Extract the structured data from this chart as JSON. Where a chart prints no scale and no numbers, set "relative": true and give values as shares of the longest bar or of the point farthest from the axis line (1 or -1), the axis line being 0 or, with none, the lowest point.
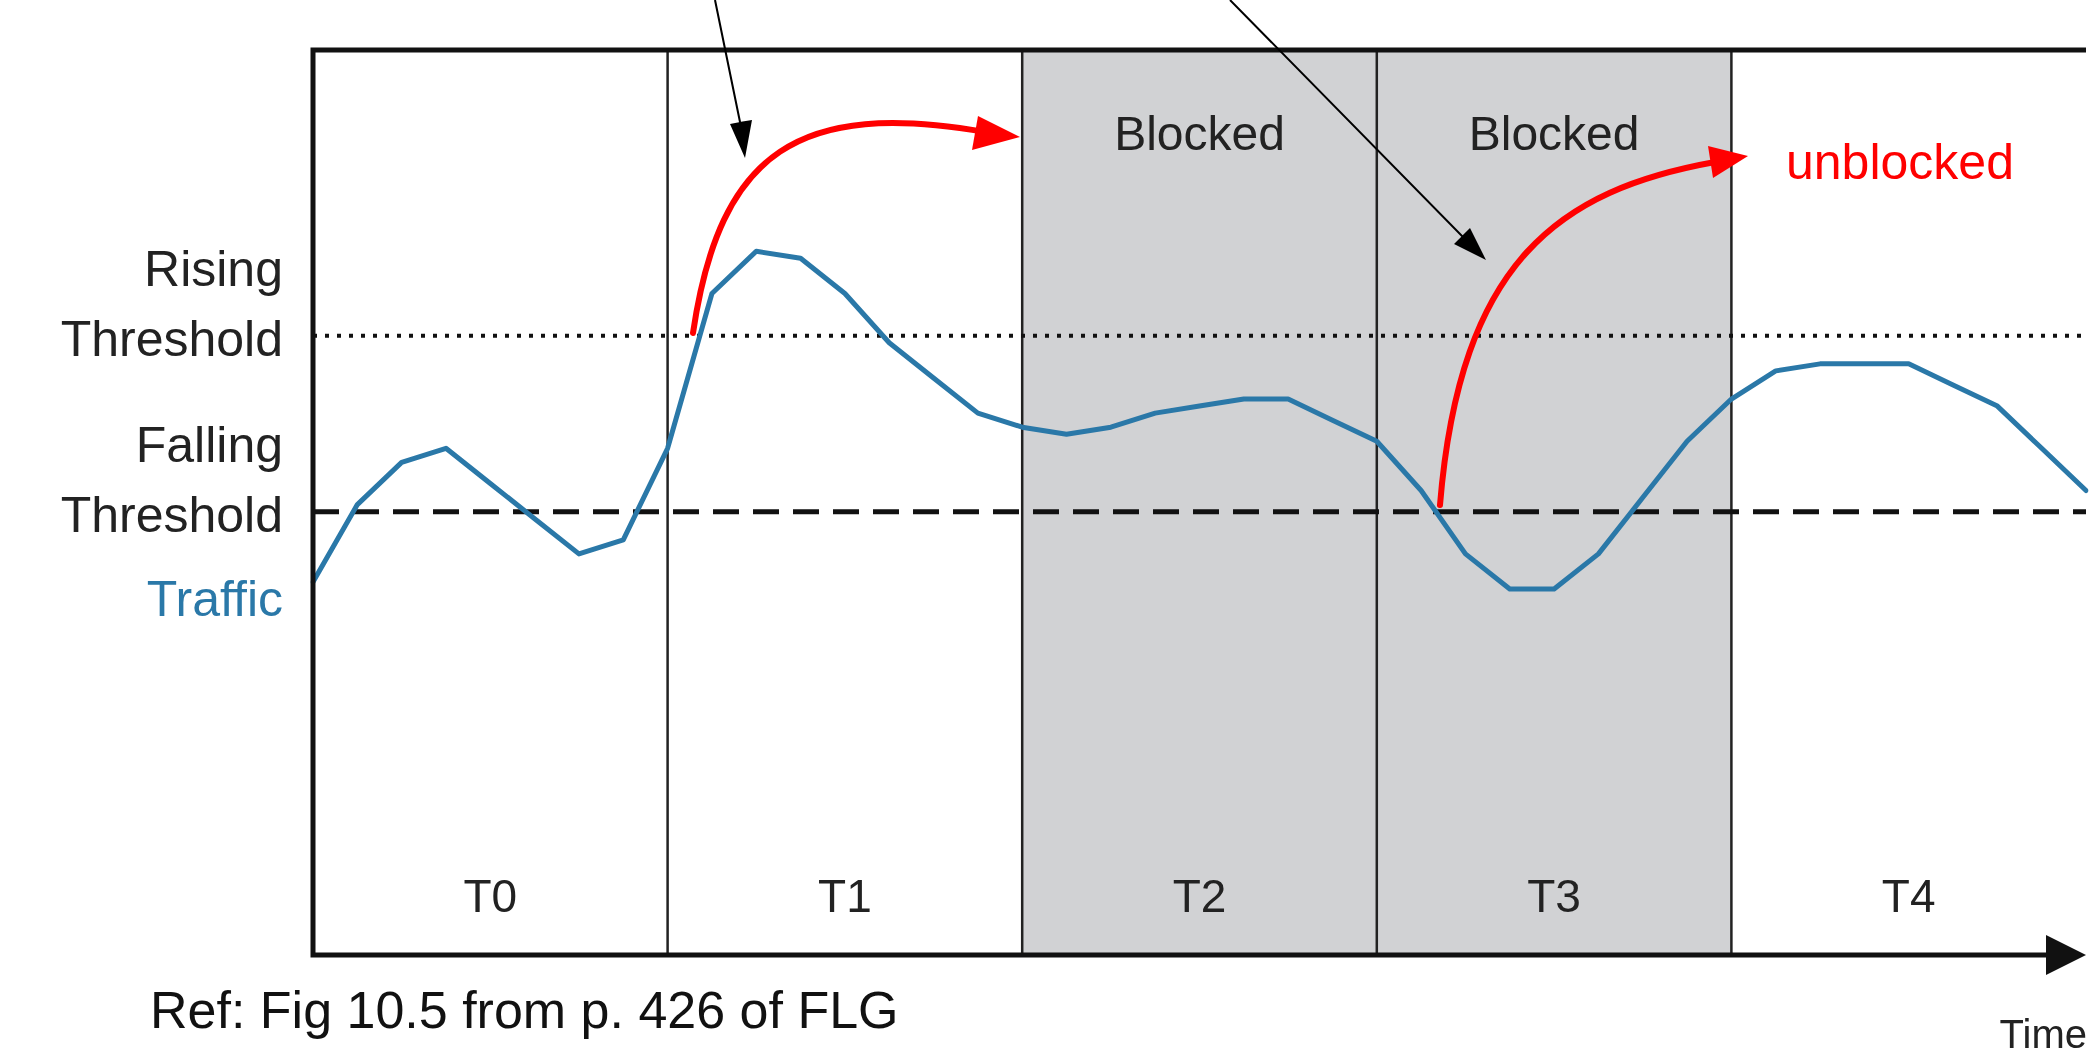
{
  "chart_data": {
    "type": "line",
    "relative": true,
    "xlabel": "Time",
    "categories": [
      null,
      null,
      null,
      null,
      "T0",
      null,
      null,
      null,
      null,
      null,
      null,
      null,
      "T1",
      null,
      null,
      null,
      null,
      null,
      null,
      null,
      "T2",
      null,
      null,
      null,
      null,
      null,
      null,
      null,
      "T3",
      null,
      null,
      null,
      null,
      null,
      null,
      null,
      "T4",
      null,
      null,
      null,
      null
    ],
    "series": [
      {
        "name": "Traffic",
        "color": "#2a78a8",
        "values": [
          0.53,
          0.64,
          0.7,
          0.72,
          0.67,
          0.62,
          0.57,
          0.59,
          0.72,
          0.94,
          1.0,
          0.99,
          0.94,
          0.87,
          0.82,
          0.77,
          0.75,
          0.74,
          0.75,
          0.77,
          0.78,
          0.79,
          0.79,
          0.76,
          0.73,
          0.66,
          0.57,
          0.52,
          0.52,
          0.57,
          0.65,
          0.73,
          0.79,
          0.83,
          0.84,
          0.84,
          0.84,
          0.81,
          0.78,
          0.72,
          0.66
        ]
      }
    ],
    "ref_lines": [
      {
        "axis": "y",
        "value": 0.88,
        "label": "Rising Threshold",
        "line_style": "dotted",
        "color": "#111111"
      },
      {
        "axis": "y",
        "value": 0.63,
        "label": "Falling Threshold",
        "line_style": "dashed",
        "color": "#111111"
      }
    ],
    "annotations": [
      "Ref: Fig 10.5 from p. 426 of FLG",
      "unblocked",
      "Blocked",
      "Blocked"
    ],
    "marker": "none",
    "line_style": "solid",
    "grid": "x",
    "legend": false
  }
}
